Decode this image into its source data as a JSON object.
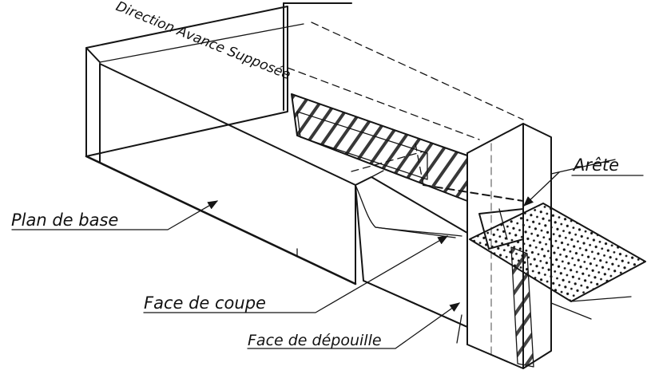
{
  "labels": {
    "direction": "Direction Avance Supposée",
    "arete": "Arête",
    "plan_de_base": "Plan de base",
    "face_de_coupe": "Face de coupe",
    "face_de_depouille": "Face de dépouille"
  },
  "colors": {
    "ink": "#151515",
    "paper": "#ffffff"
  }
}
